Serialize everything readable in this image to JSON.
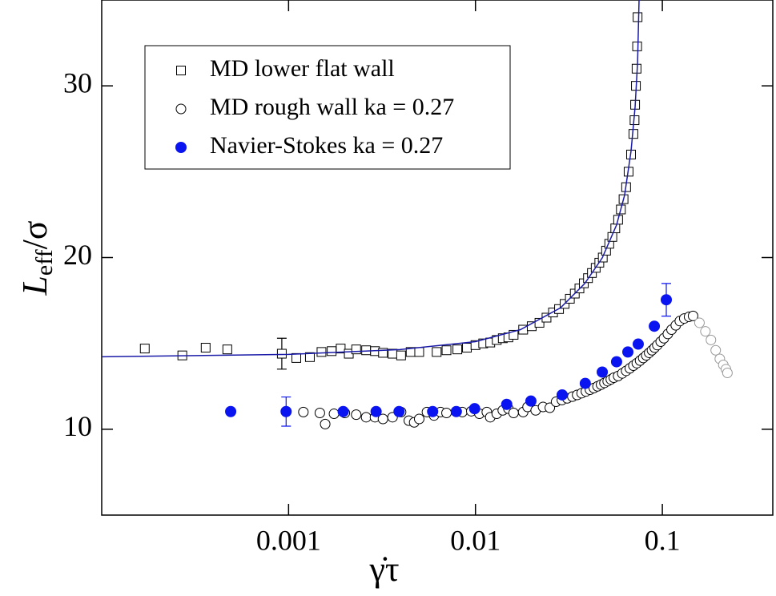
{
  "chart_data": {
    "type": "scatter",
    "x_label": "γ̇τ",
    "y_label": {
      "symbol": "L",
      "subscript": "eff",
      "suffix": "/σ"
    },
    "xlim": [
      0.0001,
      0.39
    ],
    "ylim": [
      5,
      35
    ],
    "xticks": [
      0.001,
      0.01,
      0.1
    ],
    "yticks": [
      10,
      20,
      30
    ],
    "log_x": true,
    "legend": "upper-left",
    "series": [
      {
        "name": "MD lower flat wall",
        "marker": "square",
        "filled": false,
        "color": "#000000",
        "x": [
          0.00017,
          0.00027,
          0.00036,
          0.00047,
          0.00092,
          0.0011,
          0.0013,
          0.0015,
          0.0017,
          0.0019,
          0.0021,
          0.0023,
          0.0026,
          0.0029,
          0.0032,
          0.0036,
          0.004,
          0.0045,
          0.005,
          0.0062,
          0.007,
          0.008,
          0.009,
          0.01,
          0.011,
          0.012,
          0.013,
          0.014,
          0.015,
          0.016,
          0.018,
          0.02,
          0.022,
          0.024,
          0.026,
          0.028,
          0.03,
          0.032,
          0.034,
          0.036,
          0.038,
          0.04,
          0.042,
          0.044,
          0.046,
          0.048,
          0.05,
          0.052,
          0.054,
          0.056,
          0.058,
          0.06,
          0.062,
          0.064,
          0.066,
          0.068,
          0.07,
          0.071,
          0.0715,
          0.0722,
          0.0728,
          0.0733,
          0.0737
        ],
        "values": [
          14.7,
          14.3,
          14.75,
          14.65,
          14.4,
          14.15,
          14.2,
          14.5,
          14.55,
          14.7,
          14.4,
          14.65,
          14.6,
          14.55,
          14.45,
          14.4,
          14.3,
          14.5,
          14.5,
          14.5,
          14.6,
          14.65,
          14.75,
          14.9,
          15.0,
          15.05,
          15.2,
          15.3,
          15.35,
          15.5,
          15.8,
          16.0,
          16.2,
          16.5,
          16.8,
          17.0,
          17.3,
          17.6,
          17.9,
          18.2,
          18.5,
          18.8,
          19.1,
          19.4,
          19.7,
          20.0,
          20.4,
          20.8,
          21.2,
          21.7,
          22.2,
          22.8,
          23.4,
          24.1,
          25.0,
          26.0,
          27.2,
          28.0,
          28.9,
          30.0,
          31.0,
          32.3,
          34.0
        ],
        "errors": [
          null,
          null,
          null,
          null,
          0.9,
          null,
          null,
          null,
          null,
          null,
          null,
          null,
          null,
          null,
          null,
          null,
          null,
          null,
          null,
          null,
          null,
          null,
          null,
          null,
          null,
          null,
          null,
          null,
          null,
          null,
          null,
          null,
          null,
          null,
          null,
          null,
          null,
          null,
          null,
          null,
          null,
          null,
          null,
          null,
          null,
          null,
          null,
          null,
          null,
          null,
          null,
          null,
          null,
          null,
          null,
          null,
          null,
          null,
          null,
          null,
          null,
          null,
          null
        ]
      },
      {
        "name": "MD rough wall  ka = 0.27",
        "marker": "circle",
        "filled": false,
        "color": "#000000",
        "x": [
          0.0012,
          0.00147,
          0.00157,
          0.00175,
          0.002,
          0.0023,
          0.0026,
          0.0029,
          0.0032,
          0.0036,
          0.004,
          0.0044,
          0.0047,
          0.005,
          0.0055,
          0.006,
          0.0065,
          0.007,
          0.0085,
          0.0095,
          0.0105,
          0.0115,
          0.012,
          0.013,
          0.014,
          0.015,
          0.016,
          0.018,
          0.019,
          0.021,
          0.023,
          0.025,
          0.027,
          0.029,
          0.031,
          0.033,
          0.035,
          0.037,
          0.039,
          0.041,
          0.043,
          0.045,
          0.047,
          0.049,
          0.051,
          0.053,
          0.055,
          0.058,
          0.061,
          0.064,
          0.067,
          0.07,
          0.073,
          0.076,
          0.079,
          0.082,
          0.085,
          0.088,
          0.091,
          0.094,
          0.098,
          0.102,
          0.107,
          0.112,
          0.118,
          0.124,
          0.131,
          0.139,
          0.146
        ],
        "values": [
          11.0,
          10.95,
          10.3,
          10.9,
          10.95,
          10.85,
          10.7,
          10.7,
          10.6,
          10.7,
          11.0,
          10.5,
          10.4,
          10.6,
          11.0,
          10.8,
          11.0,
          10.95,
          11.0,
          11.05,
          10.9,
          11.0,
          10.7,
          10.9,
          11.1,
          11.2,
          10.95,
          11.0,
          11.3,
          11.1,
          11.3,
          11.25,
          11.6,
          11.7,
          11.8,
          11.9,
          12.0,
          12.1,
          12.2,
          12.3,
          12.4,
          12.5,
          12.6,
          12.7,
          12.8,
          12.9,
          13.0,
          13.1,
          13.25,
          13.4,
          13.55,
          13.7,
          13.85,
          14.0,
          14.15,
          14.3,
          14.45,
          14.6,
          14.75,
          14.9,
          15.1,
          15.3,
          15.55,
          15.8,
          16.05,
          16.3,
          16.45,
          16.55,
          16.6
        ]
      },
      {
        "marker": "circle",
        "filled": false,
        "color": "#999999",
        "x": [
          0.158,
          0.17,
          0.182,
          0.193,
          0.203,
          0.212,
          0.219,
          0.223
        ],
        "values": [
          16.2,
          15.7,
          15.2,
          14.6,
          14.1,
          13.75,
          13.5,
          13.28
        ]
      },
      {
        "name": "Navier-Stokes  ka = 0.27",
        "marker": "circle",
        "filled": true,
        "color": "#0a14f0",
        "x": [
          0.00049,
          0.00097,
          0.00196,
          0.00294,
          0.0039,
          0.0059,
          0.0079,
          0.0099,
          0.0147,
          0.0198,
          0.0291,
          0.0387,
          0.0477,
          0.0569,
          0.0654,
          0.0743,
          0.0906,
          0.105
        ],
        "values": [
          11.03,
          11.03,
          11.03,
          11.03,
          11.03,
          11.03,
          11.03,
          11.2,
          11.45,
          11.64,
          12.0,
          12.67,
          13.33,
          13.93,
          14.5,
          14.96,
          16.0,
          17.54
        ],
        "errors": [
          null,
          0.85,
          null,
          null,
          null,
          null,
          null,
          null,
          null,
          null,
          null,
          null,
          null,
          null,
          null,
          null,
          null,
          0.95
        ]
      },
      {
        "marker": "line",
        "color": "#1a1aa8",
        "x": [
          0.0001,
          0.001,
          0.00395,
          0.01,
          0.0174,
          0.0285,
          0.0384,
          0.0477,
          0.0569,
          0.0628,
          0.068,
          0.0715,
          0.0737,
          0.0751
        ],
        "values": [
          14.22,
          14.36,
          14.64,
          15.1,
          15.8,
          17.07,
          18.48,
          19.98,
          21.9,
          23.63,
          26.2,
          28.78,
          31.36,
          35.1
        ]
      }
    ]
  }
}
